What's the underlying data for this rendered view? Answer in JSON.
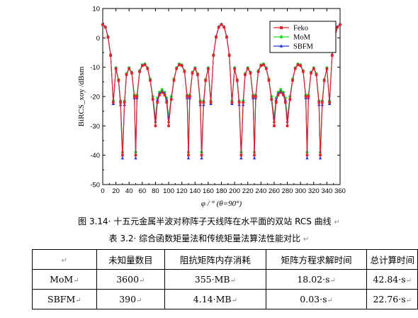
{
  "chart_data": {
    "type": "line",
    "xlabel": "φ / ° (θ=90°)",
    "ylabel": "BiRCS_xoy /dBsm",
    "xlim": [
      0,
      360
    ],
    "ylim": [
      -50,
      10
    ],
    "xticks": [
      "0",
      "20",
      "40",
      "60",
      "80",
      "100",
      "120",
      "140",
      "160",
      "180",
      "200",
      "220",
      "240",
      "260",
      "280",
      "300",
      "320",
      "340",
      "360"
    ],
    "yticks": [
      "10",
      "0",
      "-10",
      "-20",
      "-30",
      "-40",
      "-50"
    ],
    "grid": false,
    "legend_position": "top-right",
    "x": [
      0,
      4,
      8,
      12,
      16,
      20,
      24,
      27,
      30,
      33,
      36,
      40,
      44,
      48,
      50,
      52,
      56,
      60,
      64,
      68,
      72,
      76,
      80,
      83,
      86,
      90,
      94,
      97,
      100,
      104,
      108,
      112,
      116,
      120,
      124,
      128,
      130,
      132,
      136,
      140,
      144,
      148,
      150,
      153,
      156,
      160,
      164,
      168,
      172,
      176,
      180,
      184,
      188,
      192,
      196,
      200,
      204,
      207,
      210,
      213,
      216,
      220,
      224,
      228,
      230,
      232,
      236,
      240,
      244,
      248,
      252,
      256,
      260,
      263,
      266,
      270,
      274,
      277,
      280,
      284,
      288,
      292,
      296,
      300,
      304,
      308,
      310,
      312,
      316,
      320,
      324,
      328,
      330,
      333,
      336,
      340,
      344,
      348,
      352,
      356,
      360
    ],
    "series": [
      {
        "name": "Feko",
        "color": "#e8202a",
        "marker": "square",
        "values": [
          4.5,
          3.6,
          0.2,
          -6.0,
          -22.0,
          -10.5,
          -14.5,
          -22.0,
          -40.0,
          -22.0,
          -12.5,
          -10.5,
          -12.0,
          -20.0,
          -40.0,
          -20.0,
          -11.5,
          -9.5,
          -9.2,
          -10.5,
          -14.5,
          -21.0,
          -30.0,
          -22.0,
          -19.5,
          -18.6,
          -19.5,
          -22.0,
          -30.0,
          -21.0,
          -14.5,
          -10.5,
          -9.2,
          -9.5,
          -11.5,
          -20.0,
          -40.0,
          -20.0,
          -12.0,
          -10.5,
          -12.5,
          -22.0,
          -40.0,
          -22.0,
          -14.5,
          -10.5,
          -22.0,
          -6.0,
          0.2,
          3.6,
          4.5,
          3.6,
          0.2,
          -6.0,
          -22.0,
          -10.5,
          -14.5,
          -22.0,
          -40.0,
          -22.0,
          -12.5,
          -10.5,
          -12.0,
          -20.0,
          -40.0,
          -20.0,
          -11.5,
          -9.5,
          -9.2,
          -10.5,
          -14.5,
          -21.0,
          -30.0,
          -22.0,
          -19.5,
          -18.6,
          -19.5,
          -22.0,
          -30.0,
          -21.0,
          -14.5,
          -10.5,
          -9.2,
          -9.5,
          -11.5,
          -20.0,
          -40.0,
          -20.0,
          -12.0,
          -10.5,
          -12.5,
          -22.0,
          -40.0,
          -22.0,
          -14.5,
          -10.5,
          -22.0,
          -6.0,
          0.2,
          3.6,
          4.5
        ]
      },
      {
        "name": "MoM",
        "color": "#22dd22",
        "marker": "circle",
        "values": [
          4.6,
          3.7,
          0.4,
          -5.8,
          -21.5,
          -10.2,
          -14.2,
          -21.5,
          -39.0,
          -21.5,
          -12.2,
          -10.2,
          -11.7,
          -19.5,
          -39.0,
          -19.5,
          -11.2,
          -9.2,
          -8.9,
          -10.2,
          -14.0,
          -20.0,
          -27.0,
          -20.5,
          -18.5,
          -17.6,
          -18.5,
          -20.5,
          -27.0,
          -20.0,
          -14.0,
          -10.2,
          -8.9,
          -9.2,
          -11.2,
          -19.5,
          -39.0,
          -19.5,
          -11.7,
          -10.2,
          -12.2,
          -21.5,
          -39.0,
          -21.5,
          -14.2,
          -10.2,
          -21.5,
          -5.8,
          0.4,
          3.7,
          4.6,
          3.7,
          0.4,
          -5.8,
          -21.5,
          -10.2,
          -14.2,
          -21.5,
          -39.0,
          -21.5,
          -12.2,
          -10.2,
          -11.7,
          -19.5,
          -39.0,
          -19.5,
          -11.2,
          -9.2,
          -8.9,
          -10.2,
          -14.0,
          -20.0,
          -27.0,
          -20.5,
          -18.5,
          -17.6,
          -18.5,
          -20.5,
          -27.0,
          -20.0,
          -14.0,
          -10.2,
          -8.9,
          -9.2,
          -11.2,
          -19.5,
          -39.0,
          -19.5,
          -11.7,
          -10.2,
          -12.2,
          -21.5,
          -39.0,
          -21.5,
          -14.2,
          -10.2,
          -21.5,
          -5.8,
          0.4,
          3.7,
          4.6
        ]
      },
      {
        "name": "SBFM",
        "color": "#2233dd",
        "marker": "triangle",
        "values": [
          4.7,
          3.8,
          0.5,
          -5.7,
          -22.5,
          -10.4,
          -14.6,
          -22.8,
          -41.0,
          -22.8,
          -12.6,
          -10.4,
          -11.9,
          -20.5,
          -41.0,
          -20.5,
          -11.4,
          -9.4,
          -9.1,
          -10.4,
          -14.4,
          -20.6,
          -28.5,
          -21.2,
          -19.0,
          -18.2,
          -19.0,
          -21.2,
          -28.5,
          -20.6,
          -14.4,
          -10.4,
          -9.1,
          -9.4,
          -11.4,
          -20.5,
          -41.0,
          -20.5,
          -11.9,
          -10.4,
          -12.6,
          -22.8,
          -41.0,
          -22.8,
          -14.6,
          -10.4,
          -22.5,
          -5.7,
          0.5,
          3.8,
          4.7,
          3.8,
          0.5,
          -5.7,
          -22.5,
          -10.4,
          -14.6,
          -22.8,
          -41.0,
          -22.8,
          -12.6,
          -10.4,
          -11.9,
          -20.5,
          -41.0,
          -20.5,
          -11.4,
          -9.4,
          -9.1,
          -10.4,
          -14.4,
          -20.6,
          -28.5,
          -21.2,
          -19.0,
          -18.2,
          -19.0,
          -21.2,
          -28.5,
          -20.6,
          -14.4,
          -10.4,
          -9.1,
          -9.4,
          -11.4,
          -20.5,
          -41.0,
          -20.5,
          -11.9,
          -10.4,
          -12.6,
          -22.8,
          -41.0,
          -22.8,
          -14.6,
          -10.4,
          -22.5,
          -5.7,
          0.5,
          3.8,
          4.7
        ]
      }
    ]
  },
  "figure_caption": "图 3.14· 十五元金属半波对称阵子天线阵在水平面的双站 RCS 曲线",
  "figure_caption_mark": "↵",
  "table_caption": "表 3.2· 综合函数矩量法和传统矩量法算法性能对比",
  "table_caption_mark": "↵",
  "table": {
    "corner_mark": "↵",
    "headers": [
      "未知量数目",
      "阻抗矩阵内存消耗",
      "矩阵方程求解时间",
      "总计算时间"
    ],
    "rows": [
      {
        "method": "MoM",
        "cells": [
          "3600",
          "355·MB",
          "18.02·s",
          "42.84·s"
        ]
      },
      {
        "method": "SBFM",
        "cells": [
          "390",
          "4.14·MB",
          "0.03·s",
          "22.76·s"
        ]
      }
    ],
    "cell_mark": "↵"
  }
}
